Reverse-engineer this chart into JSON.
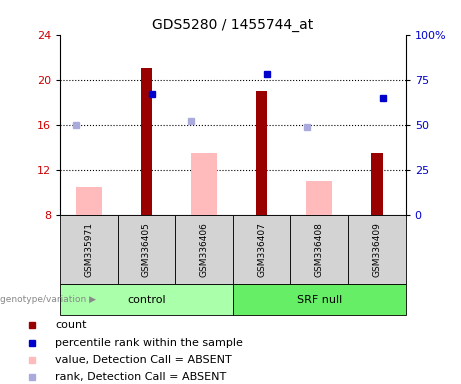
{
  "title": "GDS5280 / 1455744_at",
  "samples": [
    "GSM335971",
    "GSM336405",
    "GSM336406",
    "GSM336407",
    "GSM336408",
    "GSM336409"
  ],
  "bar_color_present": "#990000",
  "bar_color_absent": "#ffbbbb",
  "dot_color_present": "#0000cc",
  "dot_color_absent": "#aaaadd",
  "ylim_left": [
    8,
    24
  ],
  "ylim_right": [
    0,
    100
  ],
  "yticks_left": [
    8,
    12,
    16,
    20,
    24
  ],
  "yticks_right": [
    0,
    25,
    50,
    75,
    100
  ],
  "ytick_labels_right": [
    "0",
    "25",
    "50",
    "75",
    "100%"
  ],
  "count_values": [
    null,
    21.0,
    null,
    19.0,
    null,
    13.5
  ],
  "rank_pct_present": [
    null,
    67,
    null,
    78,
    null,
    65
  ],
  "absent_value_values": [
    10.5,
    null,
    13.5,
    null,
    11.0,
    null
  ],
  "absent_rank_pct": [
    50,
    null,
    52,
    null,
    49,
    null
  ],
  "background_color": "#ffffff",
  "label_color_left": "#cc0000",
  "label_color_right": "#0000cc",
  "title_fontsize": 10,
  "tick_fontsize": 8,
  "legend_fontsize": 8
}
